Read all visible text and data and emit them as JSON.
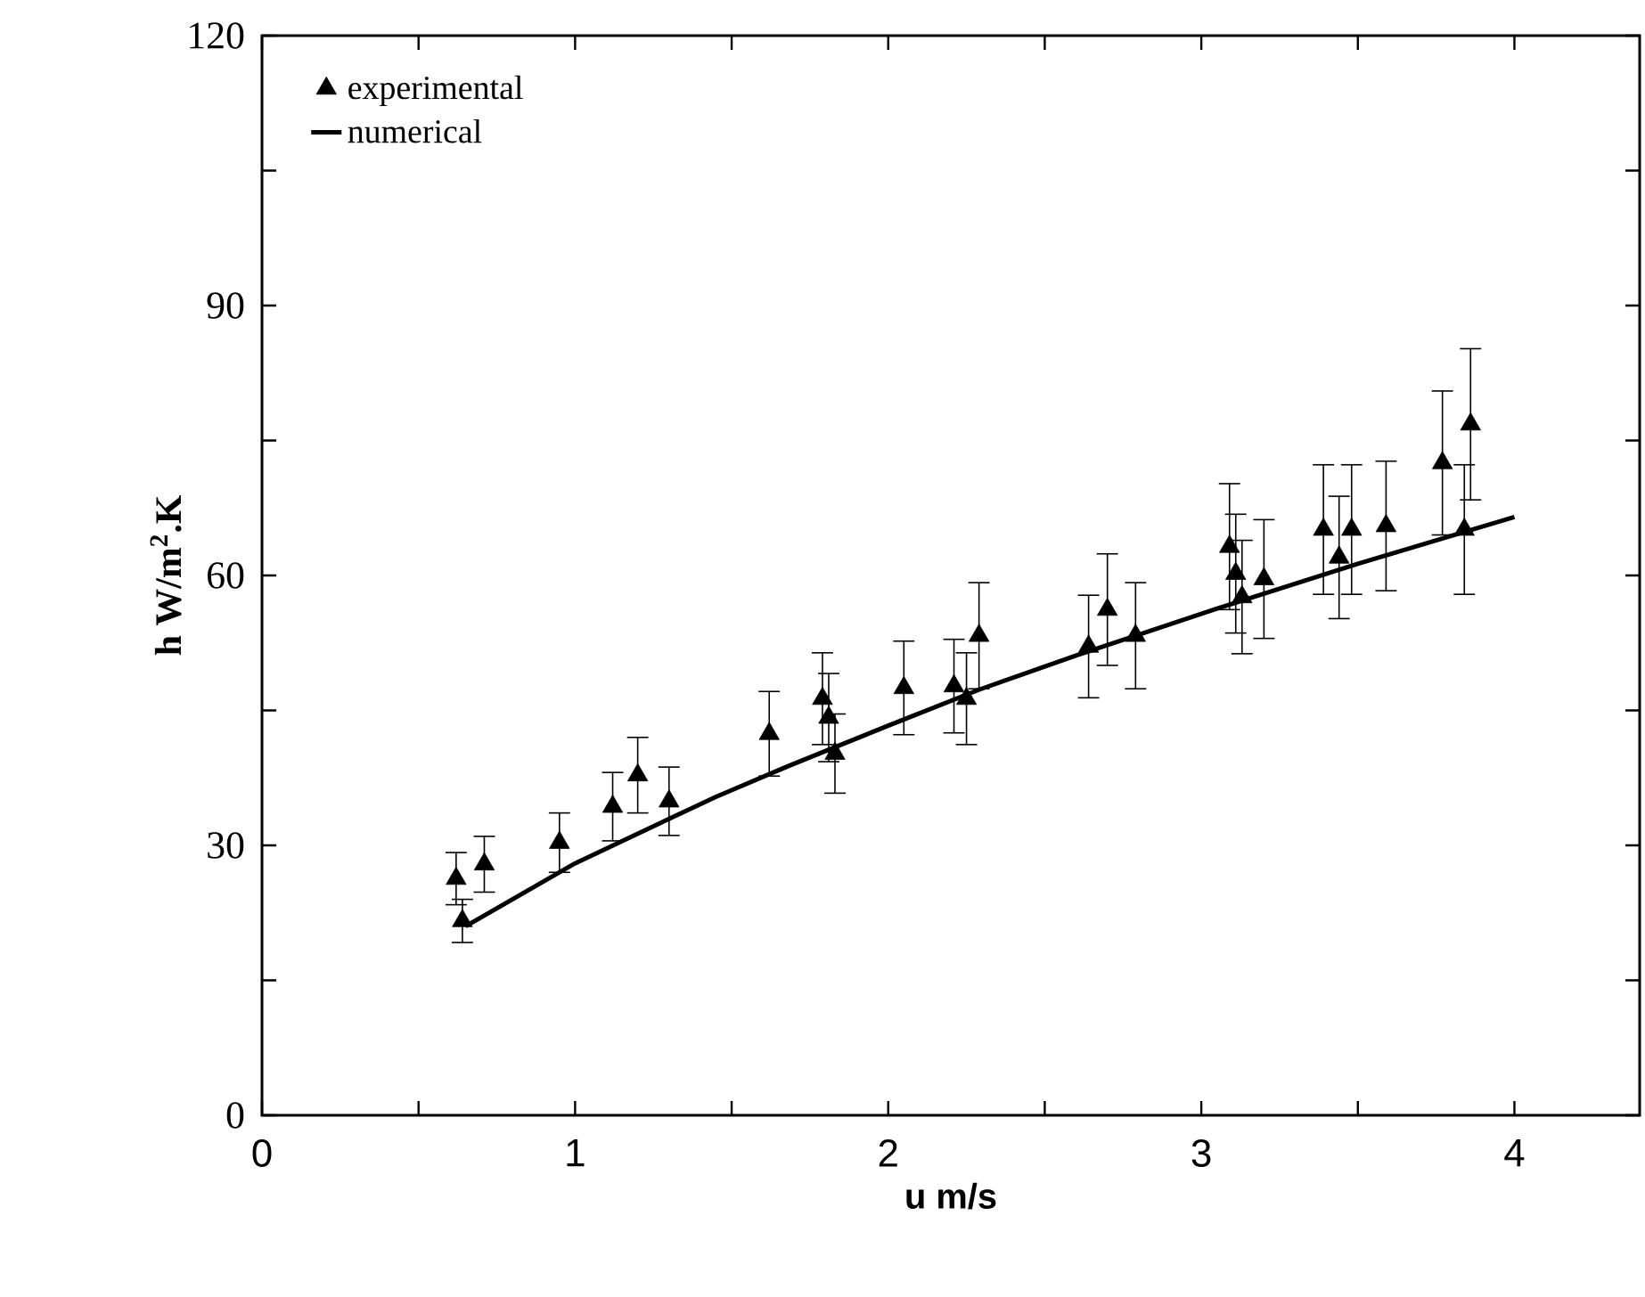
{
  "chart_data": {
    "type": "scatter",
    "xlabel": "u m/s",
    "ylabel": "h W/m$^{2}$.K",
    "xlim": [
      0,
      4.4
    ],
    "ylim": [
      0,
      120
    ],
    "xticks": [
      0,
      {
        "value": 0.5,
        "label": null
      },
      1,
      {
        "value": 1.5,
        "label": null
      },
      2,
      {
        "value": 2.5,
        "label": null
      },
      3,
      {
        "value": 3.5,
        "label": null
      },
      4
    ],
    "yticks": [
      0,
      {
        "value": 15,
        "label": null
      },
      30,
      {
        "value": 45,
        "label": null
      },
      60,
      {
        "value": 75,
        "label": null
      },
      90,
      {
        "value": 105,
        "label": null
      },
      120
    ],
    "legend": "top left",
    "grid": false,
    "series": [
      {
        "name": "experimental",
        "marker": "triangle",
        "color": "#000000",
        "x": [
          0.62,
          0.64,
          0.71,
          0.95,
          1.12,
          1.2,
          1.3,
          1.62,
          1.79,
          1.81,
          1.83,
          2.05,
          2.21,
          2.25,
          2.29,
          2.64,
          2.7,
          2.79,
          3.09,
          3.11,
          3.13,
          3.2,
          3.39,
          3.44,
          3.48,
          3.59,
          3.77,
          3.86,
          3.84
        ],
        "values": [
          26.3,
          21.6,
          27.9,
          30.3,
          34.3,
          37.8,
          34.9,
          42.4,
          46.3,
          44.2,
          40.2,
          47.5,
          47.7,
          46.3,
          53.3,
          52.1,
          56.2,
          53.3,
          63.2,
          60.2,
          57.6,
          59.6,
          65.1,
          62.0,
          65.1,
          65.5,
          72.5,
          76.8,
          65.1
        ],
        "errors": [
          2.9,
          2.4,
          3.1,
          3.3,
          3.8,
          4.2,
          3.8,
          4.7,
          5.1,
          4.9,
          4.4,
          5.2,
          5.2,
          5.1,
          5.9,
          5.7,
          6.2,
          5.9,
          7.0,
          6.6,
          6.3,
          6.6,
          7.2,
          6.8,
          7.2,
          7.2,
          8.0,
          8.4,
          7.2
        ]
      },
      {
        "name": "numerical",
        "type": "line",
        "marker": "none",
        "line_style": "solid",
        "color": "#000000",
        "x": [
          0.65,
          1.0,
          1.45,
          1.68,
          2.0,
          2.29,
          2.6,
          3.04,
          3.5,
          4.0
        ],
        "values": [
          21.0,
          28.0,
          35.4,
          38.8,
          43.3,
          47.3,
          51.1,
          56.2,
          61.3,
          66.5
        ]
      }
    ]
  }
}
